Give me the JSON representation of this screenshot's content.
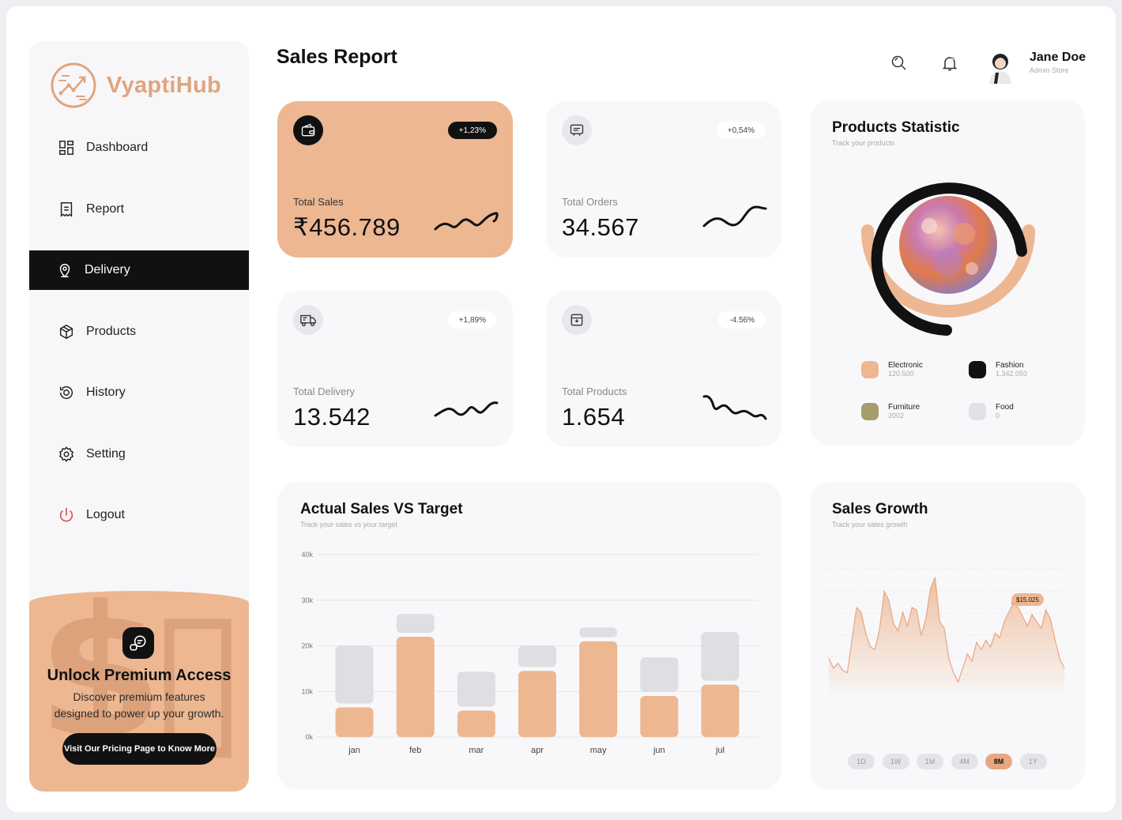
{
  "brand": {
    "name": "VyaptiHub"
  },
  "sidebar": {
    "items": [
      {
        "label": "Dashboard",
        "icon": "dashboard-icon"
      },
      {
        "label": "Report",
        "icon": "report-icon"
      },
      {
        "label": "Delivery",
        "icon": "location-pin-icon",
        "active": true
      },
      {
        "label": "Products",
        "icon": "box-icon"
      },
      {
        "label": "History",
        "icon": "history-icon"
      },
      {
        "label": "Setting",
        "icon": "gear-icon"
      },
      {
        "label": "Logout",
        "icon": "power-icon"
      }
    ],
    "promo": {
      "title": "Unlock Premium Access",
      "description": "Discover premium features designed to power up your growth.",
      "button": "Visit Our Pricing Page to Know More"
    }
  },
  "header": {
    "title": "Sales Report",
    "user": {
      "name": "Jane Doe",
      "role": "Admin Store"
    }
  },
  "stats": [
    {
      "label": "Total Sales",
      "value": "₹456.789",
      "change": "+1,23%",
      "icon": "wallet-icon"
    },
    {
      "label": "Total Orders",
      "value": "34.567",
      "change": "+0,54%",
      "icon": "receipt-icon"
    },
    {
      "label": "Total Delivery",
      "value": "13.542",
      "change": "+1,89%",
      "icon": "truck-icon"
    },
    {
      "label": "Total Products",
      "value": "1.654",
      "change": "-4.56%",
      "icon": "package-icon"
    }
  ],
  "products_statistic": {
    "title": "Products Statistic",
    "subtitle": "Track your products",
    "legend": [
      {
        "name": "Electronic",
        "value": "120.500",
        "color": "#edb792"
      },
      {
        "name": "Fashion",
        "value": "1.342.050",
        "color": "#111111"
      },
      {
        "name": "Furniture",
        "value": "2002",
        "color": "#a89b6e"
      },
      {
        "name": "Food",
        "value": "0",
        "color": "#e2e2e6"
      }
    ]
  },
  "sales_vs_target": {
    "title": "Actual Sales VS Target",
    "subtitle": "Track your sales vs your target"
  },
  "sales_growth": {
    "title": "Sales Growth",
    "subtitle": "Track your sales growth",
    "tooltip": "$15.025",
    "ranges": [
      "1D",
      "1W",
      "1M",
      "4M",
      "8M",
      "1Y"
    ],
    "active_range": "8M"
  },
  "chart_data": [
    {
      "type": "bar",
      "title": "Actual Sales VS Target",
      "categories": [
        "jan",
        "feb",
        "mar",
        "apr",
        "may",
        "jun",
        "jul"
      ],
      "y_ticks": [
        "0k",
        "10k",
        "20k",
        "30k",
        "40k"
      ],
      "ylim": [
        0,
        40000
      ],
      "series": [
        {
          "values": [
            6500,
            22000,
            5800,
            14500,
            21000,
            9000,
            11500
          ],
          "color": "#edb792"
        },
        {
          "values": [
            13500,
            5000,
            8500,
            5500,
            3000,
            8500,
            11500
          ],
          "color": "#dedee3"
        }
      ],
      "grid": true
    },
    {
      "type": "area",
      "title": "Sales Growth",
      "y": [
        30,
        22,
        26,
        20,
        18,
        46,
        74,
        70,
        52,
        40,
        38,
        56,
        88,
        80,
        60,
        54,
        70,
        58,
        74,
        72,
        50,
        64,
        90,
        100,
        62,
        56,
        30,
        18,
        10,
        22,
        34,
        28,
        44,
        38,
        46,
        40,
        52,
        48,
        62,
        70,
        78,
        74,
        66,
        58,
        68,
        62,
        56,
        72,
        64,
        46,
        30,
        22
      ],
      "ylim": [
        0,
        110
      ],
      "color": "#edb792"
    }
  ]
}
